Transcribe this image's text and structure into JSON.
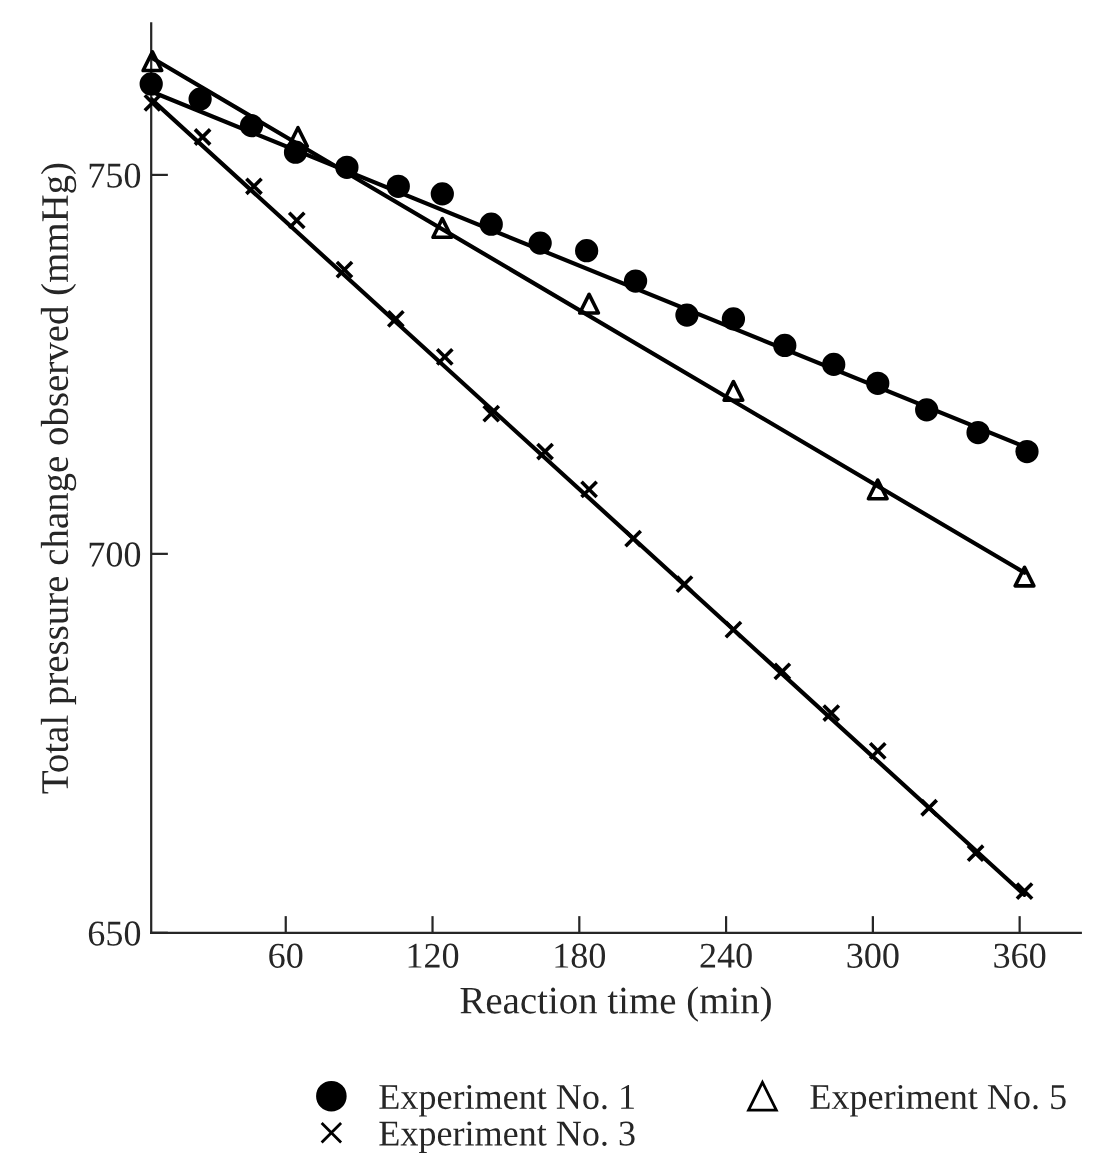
{
  "chart_data": {
    "type": "scatter",
    "xlabel": "Reaction time (min)",
    "ylabel": "Total pressure change observed (mmHg)",
    "xlim": [
      5,
      385
    ],
    "ylim": [
      650,
      770
    ],
    "xticks": [
      60,
      120,
      180,
      240,
      300,
      360
    ],
    "yticks": [
      650,
      700,
      750
    ],
    "grid": false,
    "legend": "bottom",
    "series": [
      {
        "name": "Experiment No. 1",
        "marker": "circle",
        "color": "#000000",
        "x": [
          5,
          25,
          46,
          64,
          85,
          106,
          124,
          144,
          164,
          183,
          203,
          224,
          243,
          264,
          284,
          302,
          322,
          343,
          363
        ],
        "values": [
          762,
          760,
          756.5,
          753,
          751,
          748.5,
          747.5,
          743.5,
          741,
          740,
          736,
          731.5,
          731,
          727.5,
          725,
          722.5,
          719,
          716,
          713.5
        ]
      },
      {
        "name": "Experiment No. 3",
        "marker": "cross",
        "color": "#000000",
        "x": [
          5.5,
          26,
          47,
          64.5,
          84,
          105,
          125,
          144,
          166,
          184,
          202,
          223,
          243,
          263,
          283,
          302,
          323,
          342,
          362
        ],
        "values": [
          759.5,
          755,
          748.5,
          744,
          737.5,
          731,
          726,
          718.5,
          713.5,
          708.5,
          702,
          696,
          690,
          684.5,
          679,
          674,
          666.5,
          660.5,
          655.5
        ]
      },
      {
        "name": "Experiment No. 5",
        "marker": "triangle",
        "color": "#000000",
        "x": [
          5.5,
          65,
          124,
          184,
          243,
          302,
          362
        ],
        "values": [
          765,
          755,
          743,
          733,
          721.5,
          708.5,
          697
        ]
      },
      {
        "type": "line",
        "color": "#000000",
        "x": [
          5,
          363
        ],
        "values": [
          761,
          714
        ]
      },
      {
        "type": "line",
        "color": "#000000",
        "x": [
          5,
          362
        ],
        "values": [
          765.5,
          697.5
        ]
      },
      {
        "type": "line",
        "color": "#000000",
        "x": [
          5,
          362
        ],
        "values": [
          760,
          655
        ]
      }
    ]
  }
}
